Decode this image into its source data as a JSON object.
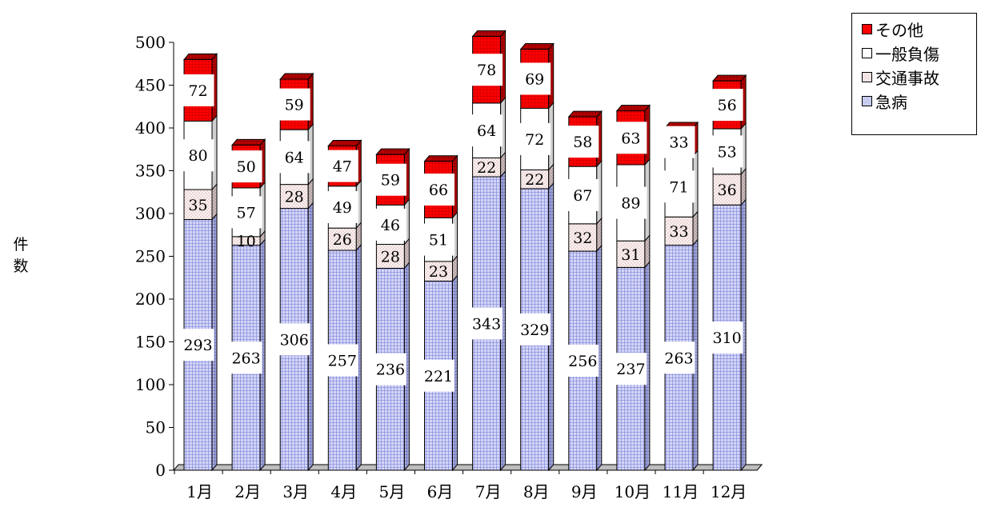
{
  "chart_data": {
    "type": "bar",
    "stacked": true,
    "three_d": true,
    "categories": [
      "1月",
      "2月",
      "3月",
      "4月",
      "5月",
      "6月",
      "7月",
      "8月",
      "9月",
      "10月",
      "11月",
      "12月"
    ],
    "series": [
      {
        "name": "急病",
        "values": [
          293,
          263,
          306,
          257,
          236,
          221,
          343,
          329,
          256,
          237,
          263,
          310
        ],
        "color": "#c8ccf0",
        "pattern": "grid"
      },
      {
        "name": "交通事故",
        "values": [
          35,
          10,
          28,
          26,
          28,
          23,
          22,
          22,
          32,
          31,
          33,
          36
        ],
        "color": "#f2e4e4",
        "pattern": "dots"
      },
      {
        "name": "一般負傷",
        "values": [
          80,
          57,
          64,
          49,
          46,
          51,
          64,
          72,
          67,
          89,
          71,
          53
        ],
        "color": "#ffffff",
        "pattern": "none"
      },
      {
        "name": "その他",
        "values": [
          72,
          50,
          59,
          47,
          59,
          66,
          78,
          69,
          58,
          63,
          33,
          56
        ],
        "color": "#ff0000",
        "pattern": "grid"
      }
    ],
    "ylabel": "件数",
    "ylim": [
      0,
      500
    ],
    "yticks": [
      0,
      50,
      100,
      150,
      200,
      250,
      300,
      350,
      400,
      450,
      500
    ],
    "grid": false,
    "legend_position": "top-right",
    "data_labels": true
  }
}
